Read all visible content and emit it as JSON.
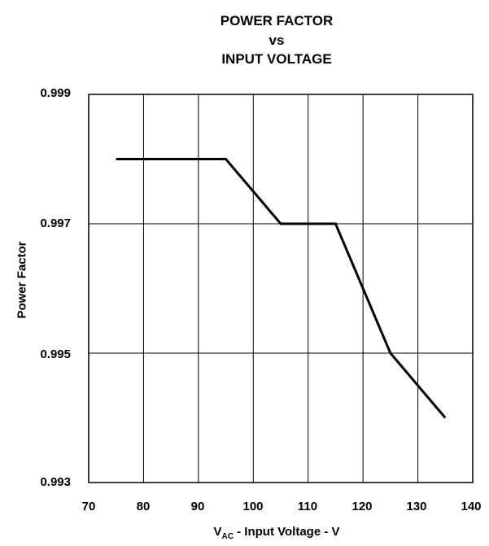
{
  "chart_data": {
    "type": "line",
    "title_lines": [
      "POWER FACTOR",
      "vs",
      "INPUT VOLTAGE"
    ],
    "ylabel": "Power Factor",
    "xlabel": {
      "main": "V",
      "sub": "AC",
      "rest": " - Input Voltage - V"
    },
    "xlim": [
      70,
      140
    ],
    "ylim": [
      0.993,
      0.999
    ],
    "xticks": [
      "70",
      "80",
      "90",
      "100",
      "110",
      "120",
      "130",
      "140"
    ],
    "yticks": [
      "0.999",
      "0.997",
      "0.995",
      "0.993"
    ],
    "grid": true,
    "series": [
      {
        "x": [
          75,
          95,
          105,
          115,
          125,
          135
        ],
        "y": [
          0.998,
          0.998,
          0.997,
          0.997,
          0.995,
          0.994
        ]
      }
    ]
  }
}
